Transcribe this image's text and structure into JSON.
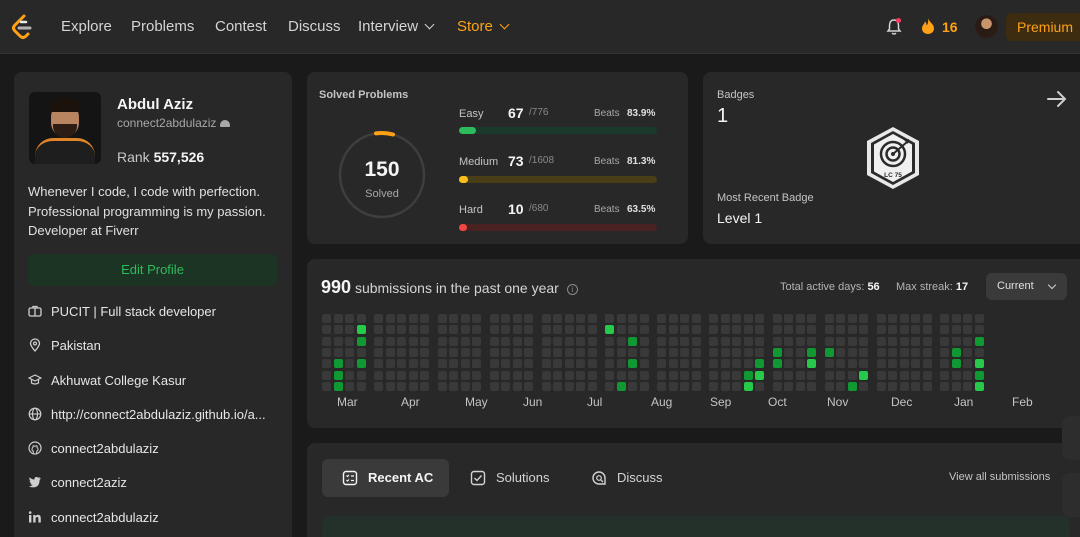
{
  "nav": {
    "items": [
      "Explore",
      "Problems",
      "Contest",
      "Discuss",
      "Interview",
      "Store"
    ],
    "streak_count": "16",
    "premium_label": "Premium",
    "accent": "#ffa116"
  },
  "profile": {
    "name": "Abdul Aziz",
    "username": "connect2abdulaziz",
    "rank_label": "Rank",
    "rank_value": "557,526",
    "bio": [
      "Whenever I code, I code with perfection.",
      "Professional programming is my passion.",
      "Developer at Fiverr"
    ],
    "edit_label": "Edit Profile",
    "info": [
      {
        "icon": "briefcase-icon",
        "text": "PUCIT | Full stack developer"
      },
      {
        "icon": "location-pin-icon",
        "text": "Pakistan"
      },
      {
        "icon": "graduation-cap-icon",
        "text": "Akhuwat College Kasur"
      },
      {
        "icon": "globe-icon",
        "text": "http://connect2abdulaziz.github.io/a..."
      },
      {
        "icon": "github-icon",
        "text": "connect2abdulaziz"
      },
      {
        "icon": "twitter-icon",
        "text": "connect2aziz"
      },
      {
        "icon": "linkedin-icon",
        "text": "connect2abdulaziz"
      }
    ]
  },
  "solved": {
    "title": "Solved Problems",
    "total": "150",
    "total_label": "Solved",
    "difficulties": [
      {
        "label": "Easy",
        "count": 67,
        "total": "/776",
        "beats_label": "Beats",
        "beats": "83.9%",
        "color": "#2cbb5d",
        "track": "#1a3a2b"
      },
      {
        "label": "Medium",
        "count": 73,
        "total": "/1608",
        "beats_label": "Beats",
        "beats": "81.3%",
        "color": "#ffc01e",
        "track": "#4a3e17"
      },
      {
        "label": "Hard",
        "count": 10,
        "total": "/680",
        "beats_label": "Beats",
        "beats": "63.5%",
        "color": "#ef4743",
        "track": "#4a2221"
      }
    ]
  },
  "badges": {
    "title": "Badges",
    "count": "1",
    "badge_text": "LC 75",
    "recent_label": "Most Recent Badge",
    "recent_value": "Level 1"
  },
  "heatmap": {
    "count": "990",
    "title_text": "submissions in the past one year",
    "active_label": "Total active days:",
    "active_value": "56",
    "streak_label": "Max streak:",
    "streak_value": "17",
    "range_label": "Current",
    "months": [
      "Mar",
      "Apr",
      "May",
      "Jun",
      "Jul",
      "Aug",
      "Sep",
      "Oct",
      "Nov",
      "Dec",
      "Jan",
      "Feb"
    ],
    "colors": {
      "empty": "#393939",
      "l1": "#0e4429",
      "l2": "#109932",
      "l3": "#26c94a",
      "l4": "#7ee191"
    }
  },
  "recent": {
    "tabs": [
      {
        "icon": "list-icon",
        "label": "Recent AC"
      },
      {
        "icon": "check-square-icon",
        "label": "Solutions"
      },
      {
        "icon": "chat-search-icon",
        "label": "Discuss"
      }
    ],
    "view_all": "View all submissions"
  }
}
